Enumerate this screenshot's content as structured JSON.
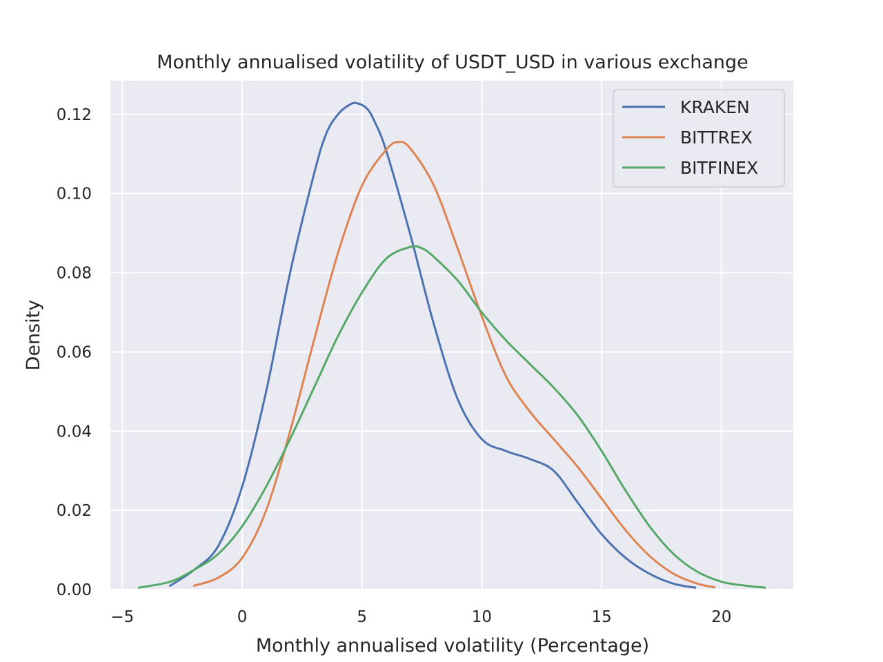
{
  "chart_data": {
    "type": "line",
    "title": "Monthly annualised volatility of USDT_USD in various exchange",
    "xlabel": "Monthly annualised volatility (Percentage)",
    "ylabel": "Density",
    "xlim": [
      -5.5,
      23
    ],
    "ylim": [
      0,
      0.1285
    ],
    "xticks": [
      -5,
      0,
      5,
      10,
      15,
      20
    ],
    "yticks": [
      0.0,
      0.02,
      0.04,
      0.06,
      0.08,
      0.1,
      0.12
    ],
    "xtick_labels": [
      "−5",
      "0",
      "5",
      "10",
      "15",
      "20"
    ],
    "ytick_labels": [
      "0.00",
      "0.02",
      "0.04",
      "0.06",
      "0.08",
      "0.10",
      "0.12"
    ],
    "grid": true,
    "legend_position": "top-right",
    "background_color": "#eaeaf2",
    "series": [
      {
        "name": "KRAKEN",
        "color": "#4c72b0",
        "x": [
          -3.0,
          -2.0,
          -1.0,
          0.0,
          1.0,
          2.0,
          3.0,
          3.5,
          4.0,
          4.5,
          4.8,
          5.2,
          5.5,
          6.0,
          7.0,
          8.0,
          9.0,
          10.0,
          11.0,
          12.0,
          13.0,
          14.0,
          15.0,
          16.0,
          17.0,
          18.0,
          18.9
        ],
        "y": [
          0.001,
          0.005,
          0.011,
          0.026,
          0.05,
          0.08,
          0.105,
          0.115,
          0.12,
          0.1225,
          0.1228,
          0.1215,
          0.1185,
          0.111,
          0.09,
          0.067,
          0.048,
          0.038,
          0.035,
          0.033,
          0.03,
          0.022,
          0.014,
          0.008,
          0.004,
          0.0015,
          0.0005
        ]
      },
      {
        "name": "BITTREX",
        "color": "#dd8452",
        "x": [
          -2.0,
          -1.0,
          0.0,
          1.0,
          2.0,
          3.0,
          4.0,
          5.0,
          6.0,
          6.5,
          7.0,
          8.0,
          9.0,
          10.0,
          11.0,
          12.0,
          13.0,
          14.0,
          15.0,
          16.0,
          17.0,
          18.0,
          19.0,
          19.7
        ],
        "y": [
          0.001,
          0.003,
          0.008,
          0.02,
          0.04,
          0.063,
          0.085,
          0.102,
          0.111,
          0.113,
          0.1115,
          0.102,
          0.086,
          0.069,
          0.054,
          0.045,
          0.038,
          0.031,
          0.023,
          0.015,
          0.0085,
          0.004,
          0.0015,
          0.0006
        ]
      },
      {
        "name": "BITFINEX",
        "color": "#55a868",
        "x": [
          -4.3,
          -3.0,
          -2.0,
          -1.0,
          0.0,
          1.0,
          2.0,
          3.0,
          4.0,
          5.0,
          6.0,
          7.0,
          7.5,
          8.0,
          9.0,
          10.0,
          11.0,
          12.0,
          13.0,
          14.0,
          15.0,
          16.0,
          17.0,
          18.0,
          19.0,
          20.0,
          21.0,
          21.8
        ],
        "y": [
          0.0005,
          0.002,
          0.005,
          0.009,
          0.016,
          0.026,
          0.038,
          0.051,
          0.064,
          0.075,
          0.0835,
          0.0865,
          0.0862,
          0.084,
          0.078,
          0.07,
          0.063,
          0.057,
          0.051,
          0.044,
          0.035,
          0.025,
          0.016,
          0.009,
          0.0045,
          0.002,
          0.001,
          0.0005
        ]
      }
    ]
  }
}
